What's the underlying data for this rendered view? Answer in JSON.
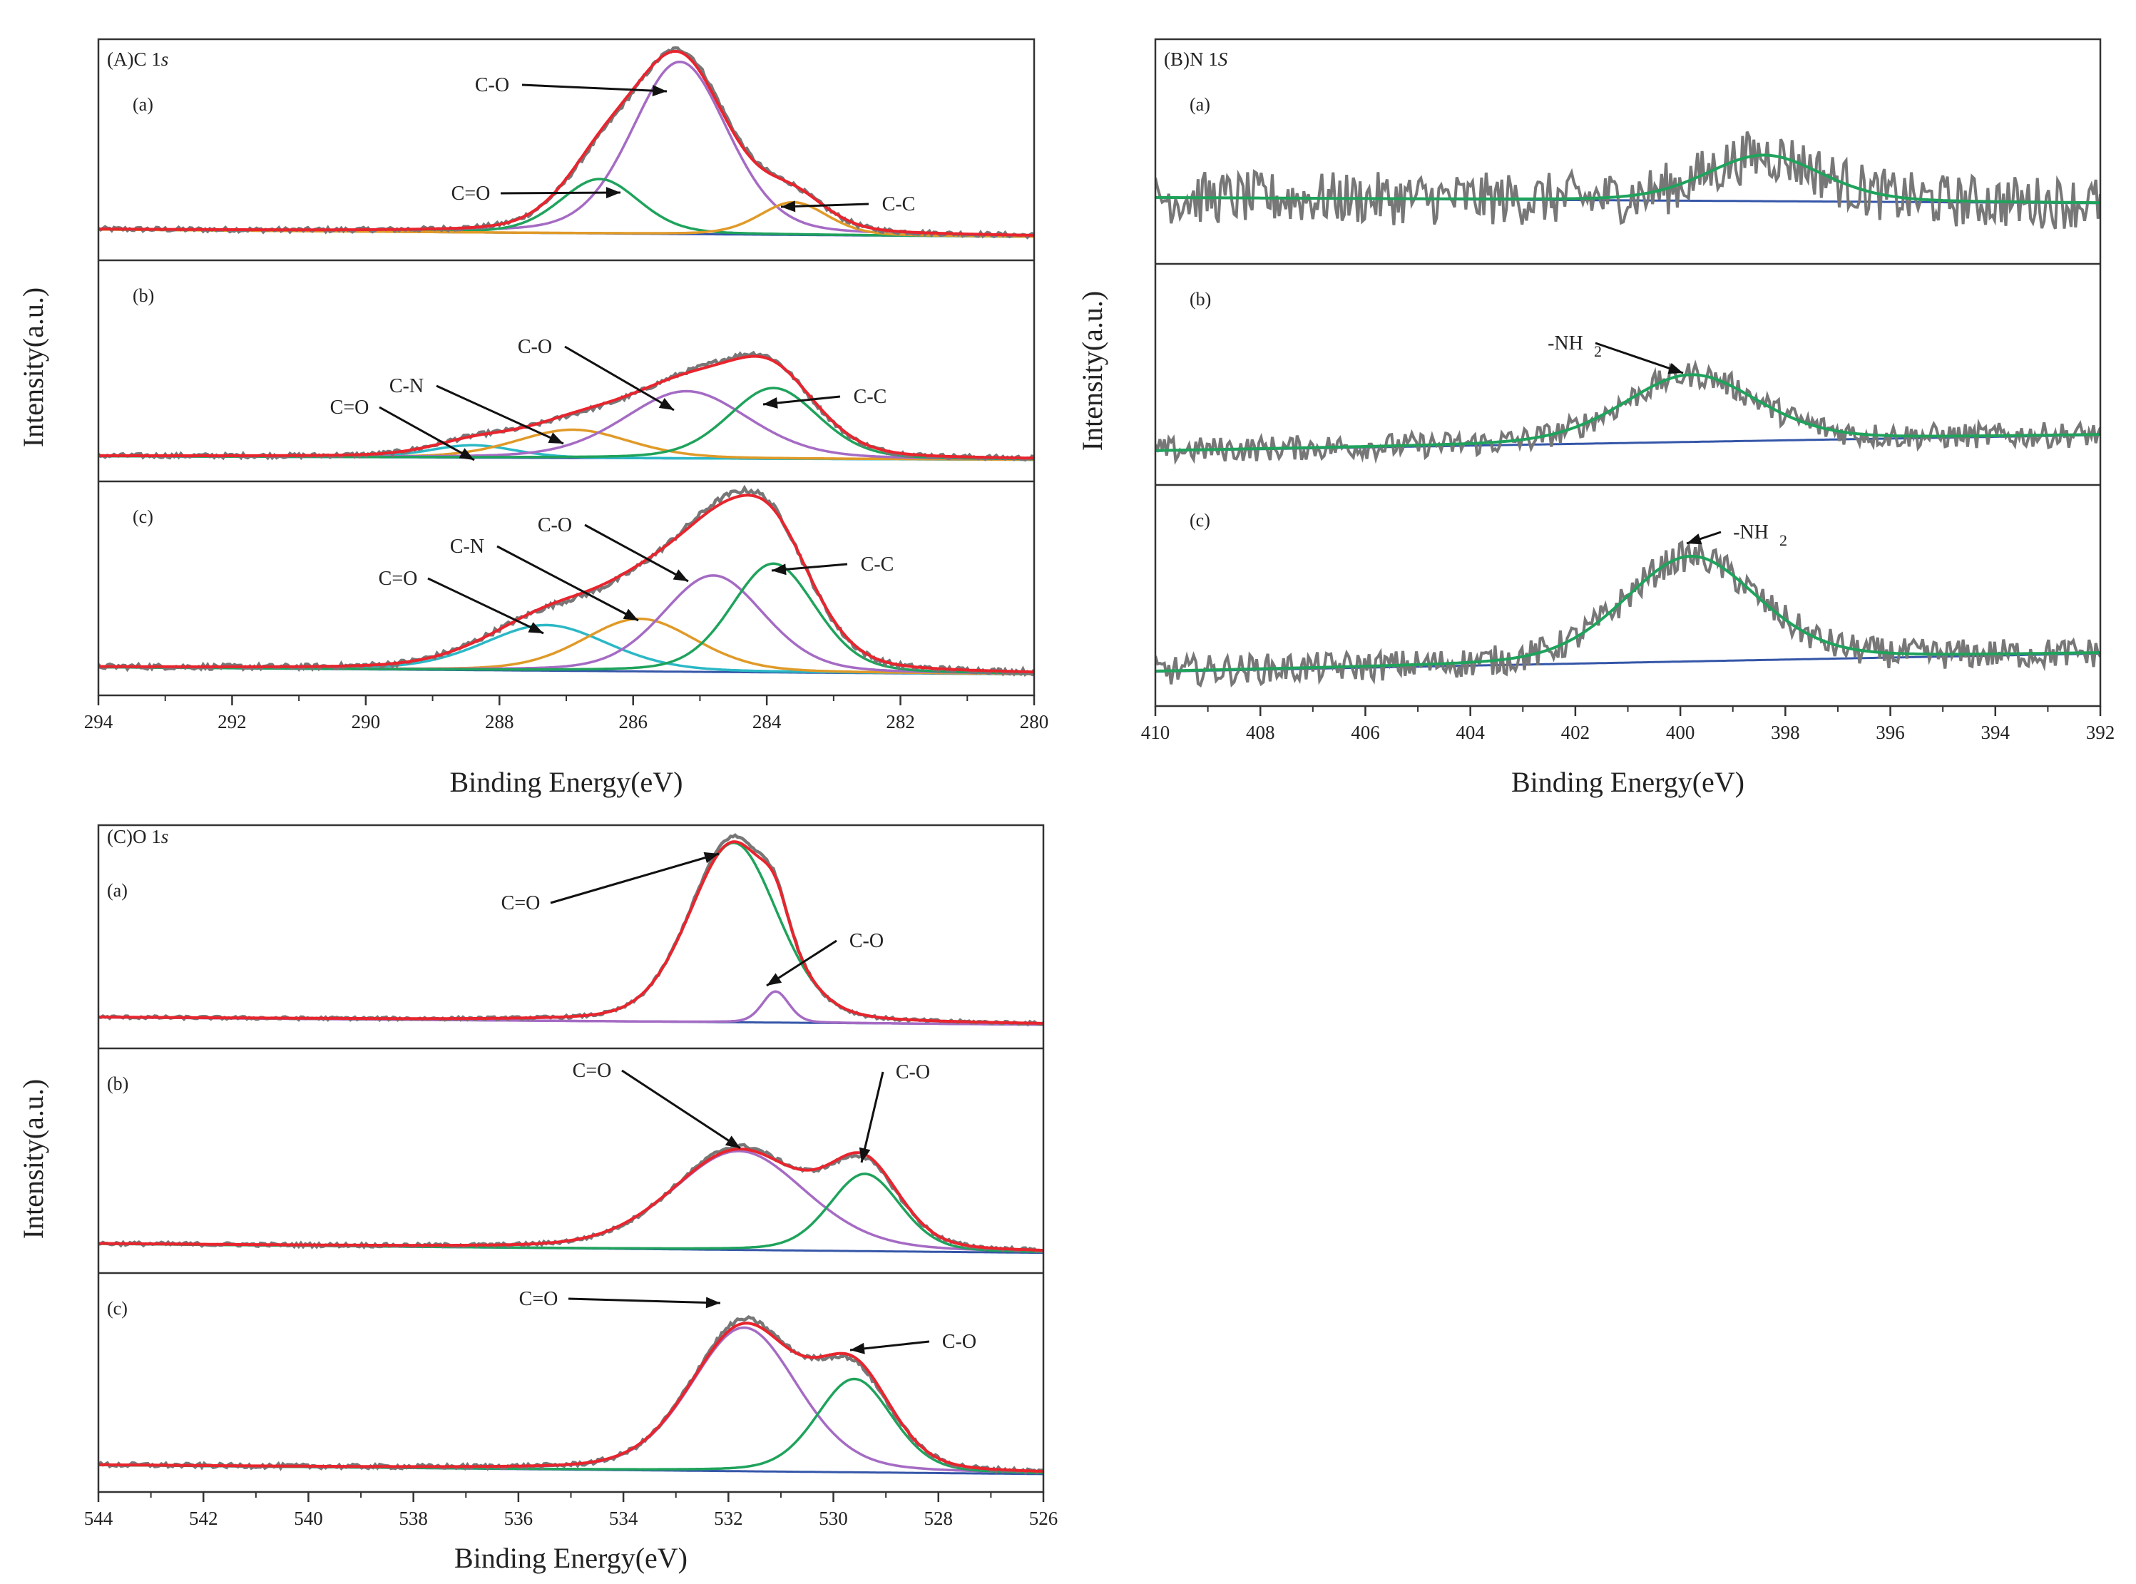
{
  "figure": {
    "colors": {
      "raw": "#777777",
      "envelope": "#e8252e",
      "background": "#3556a8",
      "green": "#1fa35c",
      "purple": "#a56bc4",
      "orange": "#e09a28",
      "cyan": "#2bb8c6",
      "frame": "#333333",
      "arrow": "#111111"
    }
  },
  "chart_data": [
    {
      "id": "A",
      "type": "line",
      "title": "(A)C 1s",
      "title_main": "(A)C 1",
      "title_italic": "s",
      "xlabel": "Binding Energy(eV)",
      "ylabel": "Intensity(a.u.)",
      "xlim": [
        294,
        280
      ],
      "x_ticks": [
        "294",
        "292",
        "290",
        "288",
        "286",
        "284",
        "282",
        "280"
      ],
      "reversed_x": true,
      "subplots": [
        {
          "label": "(a)",
          "background": {
            "start": 0.06,
            "end": 0.02
          },
          "raw_noise": 0.012,
          "peaks": [
            {
              "name": "C-O",
              "center": 285.3,
              "height": 0.95,
              "fwhm": 1.7,
              "color": "purple"
            },
            {
              "name": "C=O",
              "center": 286.5,
              "height": 0.3,
              "fwhm": 1.4,
              "color": "green"
            },
            {
              "name": "C-C",
              "center": 283.6,
              "height": 0.18,
              "fwhm": 1.2,
              "color": "orange"
            }
          ],
          "annotations": [
            {
              "text": "C-O",
              "x": 285.3
            },
            {
              "text": "C=O",
              "x": 286.5
            },
            {
              "text": "C-C",
              "x": 283.6
            }
          ]
        },
        {
          "label": "(b)",
          "background": {
            "start": 0.03,
            "end": 0.01
          },
          "raw_noise": 0.012,
          "peaks": [
            {
              "name": "C=O",
              "center": 288.4,
              "height": 0.07,
              "fwhm": 1.5,
              "color": "cyan"
            },
            {
              "name": "C-N",
              "center": 286.9,
              "height": 0.16,
              "fwhm": 2.0,
              "color": "orange"
            },
            {
              "name": "C-O",
              "center": 285.2,
              "height": 0.38,
              "fwhm": 2.2,
              "color": "purple"
            },
            {
              "name": "C-C",
              "center": 283.9,
              "height": 0.4,
              "fwhm": 1.6,
              "color": "green"
            }
          ],
          "annotations": [
            {
              "text": "C=O",
              "x": 288.3
            },
            {
              "text": "C-N",
              "x": 286.8
            },
            {
              "text": "C-O",
              "x": 285.0
            },
            {
              "text": "C-C",
              "x": 283.8
            }
          ]
        },
        {
          "label": "(c)",
          "background": {
            "start": 0.05,
            "end": 0.01
          },
          "raw_noise": 0.015,
          "peaks": [
            {
              "name": "C=O",
              "center": 287.3,
              "height": 0.26,
              "fwhm": 2.2,
              "color": "cyan"
            },
            {
              "name": "C-N",
              "center": 285.9,
              "height": 0.3,
              "fwhm": 2.0,
              "color": "orange"
            },
            {
              "name": "C-O",
              "center": 284.8,
              "height": 0.55,
              "fwhm": 1.8,
              "color": "purple"
            },
            {
              "name": "C-C",
              "center": 283.9,
              "height": 0.62,
              "fwhm": 1.5,
              "color": "green"
            }
          ],
          "annotations": [
            {
              "text": "C=O",
              "x": 287.2
            },
            {
              "text": "C-N",
              "x": 285.8
            },
            {
              "text": "C-O",
              "x": 284.8
            },
            {
              "text": "C-C",
              "x": 283.9
            }
          ]
        }
      ]
    },
    {
      "id": "B",
      "type": "line",
      "title": "(B)N 1S",
      "title_main": "(B)N 1",
      "title_italic": "S",
      "xlabel": "Binding Energy(eV)",
      "ylabel": "Intensity(a.u.)",
      "xlim": [
        410,
        392
      ],
      "x_ticks": [
        "410",
        "408",
        "406",
        "404",
        "402",
        "400",
        "398",
        "396",
        "394",
        "392"
      ],
      "reversed_x": true,
      "subplots": [
        {
          "label": "(a)",
          "background": {
            "start": 0.25,
            "end": 0.22
          },
          "raw_noise": 0.12,
          "peaks": [
            {
              "name": "",
              "center": 398.4,
              "height": 0.25,
              "fwhm": 2.6,
              "color": "green"
            }
          ],
          "annotations": []
        },
        {
          "label": "(b)",
          "background": {
            "start": 0.08,
            "end": 0.17
          },
          "raw_noise": 0.06,
          "peaks": [
            {
              "name": "-NH2",
              "center": 399.8,
              "height": 0.38,
              "fwhm": 3.0,
              "color": "green"
            }
          ],
          "annotations": [
            {
              "text": "-NH",
              "sub": "2",
              "x": 399.8
            }
          ]
        },
        {
          "label": "(c)",
          "background": {
            "start": 0.08,
            "end": 0.18
          },
          "raw_noise": 0.07,
          "peaks": [
            {
              "name": "-NH2",
              "center": 399.8,
              "height": 0.58,
              "fwhm": 3.0,
              "color": "green"
            }
          ],
          "annotations": [
            {
              "text": "-NH",
              "sub": "2",
              "x": 399.8
            }
          ]
        }
      ]
    },
    {
      "id": "C",
      "type": "line",
      "title": "(C)O 1s",
      "title_main": "(C)O 1",
      "title_italic": "s",
      "xlabel": "Binding Energy(eV)",
      "ylabel": "Intensity(a.u.)",
      "xlim": [
        544,
        526
      ],
      "x_ticks": [
        "544",
        "542",
        "540",
        "538",
        "536",
        "534",
        "532",
        "530",
        "528",
        "526"
      ],
      "reversed_x": true,
      "subplots": [
        {
          "label": "(a)",
          "background": {
            "start": 0.06,
            "end": 0.02
          },
          "raw_noise": 0.008,
          "peaks": [
            {
              "name": "C=O",
              "center": 531.9,
              "height": 0.98,
              "fwhm": 2.0,
              "color": "green"
            },
            {
              "name": "C-O",
              "center": 531.1,
              "height": 0.17,
              "fwhm": 0.6,
              "color": "purple"
            }
          ],
          "annotations": [
            {
              "text": "C=O",
              "x": 531.9
            },
            {
              "text": "C-O",
              "x": 531.1
            }
          ]
        },
        {
          "label": "(b)",
          "background": {
            "start": 0.05,
            "end": 0.0
          },
          "raw_noise": 0.01,
          "peaks": [
            {
              "name": "C=O",
              "center": 531.8,
              "height": 0.55,
              "fwhm": 3.0,
              "color": "purple"
            },
            {
              "name": "C-O",
              "center": 529.4,
              "height": 0.43,
              "fwhm": 1.6,
              "color": "green"
            }
          ],
          "annotations": [
            {
              "text": "C=O",
              "x": 531.8
            },
            {
              "text": "C-O",
              "x": 529.4
            }
          ]
        },
        {
          "label": "(c)",
          "background": {
            "start": 0.04,
            "end": -0.01
          },
          "raw_noise": 0.012,
          "peaks": [
            {
              "name": "C=O",
              "center": 531.7,
              "height": 0.8,
              "fwhm": 2.4,
              "color": "purple"
            },
            {
              "name": "C-O",
              "center": 529.6,
              "height": 0.52,
              "fwhm": 1.7,
              "color": "green"
            }
          ],
          "annotations": [
            {
              "text": "C=O",
              "x": 531.7
            },
            {
              "text": "C-O",
              "x": 529.6
            }
          ]
        }
      ]
    }
  ]
}
